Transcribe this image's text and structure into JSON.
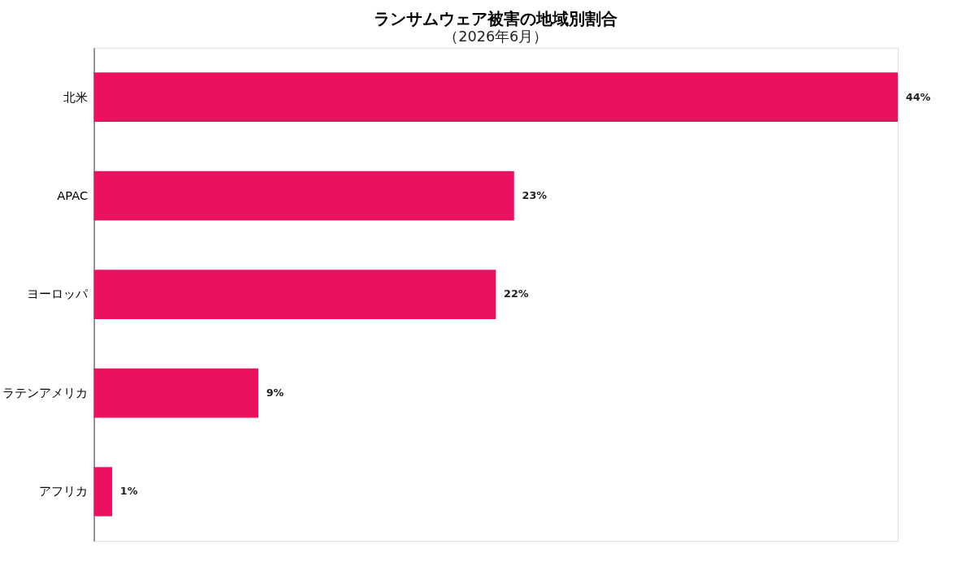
{
  "chart_data": {
    "type": "bar",
    "orientation": "horizontal",
    "title": "ランサムウェア被害の地域別割合",
    "subtitle": "（2026年6月）",
    "categories": [
      "北米",
      "APAC",
      "ヨーロッパ",
      "ラテンアメリカ",
      "アフリカ"
    ],
    "values": [
      44,
      23,
      22,
      9,
      1
    ],
    "color": "#ec1160",
    "value_labels": [
      "44%",
      "23%",
      "22%",
      "9%",
      "1%"
    ],
    "tick_labels": "y"
  }
}
